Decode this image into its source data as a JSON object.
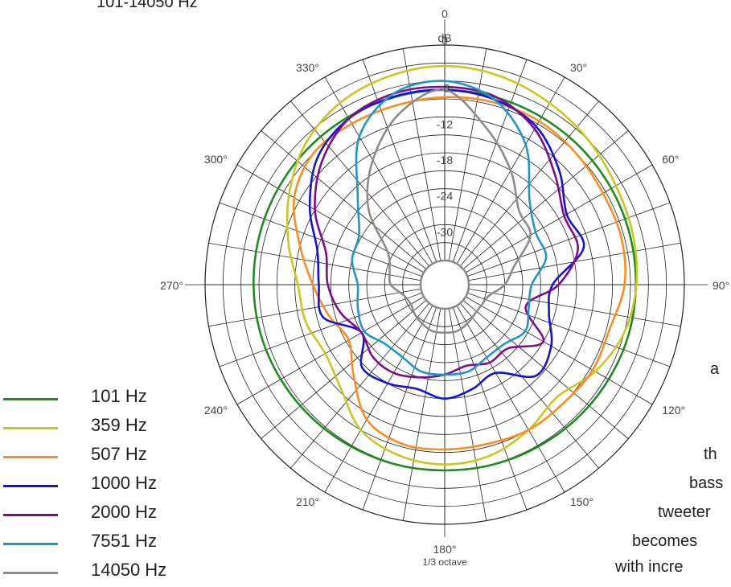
{
  "page": {
    "title": "101-14050 Hz",
    "side_fragments": [
      "a",
      "th",
      "bass",
      "tweeter",
      "becomes",
      "with incre"
    ]
  },
  "chart_data": {
    "type": "polar-line",
    "radial_unit": "dB",
    "radial_ticks": [
      "0",
      "-6",
      "-12",
      "-18",
      "-24",
      "-30"
    ],
    "radial_range": [
      -36,
      0
    ],
    "angle_labels": [
      {
        "angle": 0,
        "label": "0"
      },
      {
        "angle": 30,
        "label": "30°"
      },
      {
        "angle": 60,
        "label": "60°"
      },
      {
        "angle": 90,
        "label": "90°"
      },
      {
        "angle": 120,
        "label": "120°"
      },
      {
        "angle": 150,
        "label": "150°"
      },
      {
        "angle": 180,
        "label": "180°"
      },
      {
        "angle": 210,
        "label": "210°"
      },
      {
        "angle": 240,
        "label": "240°"
      },
      {
        "angle": 270,
        "label": "270°"
      },
      {
        "angle": 300,
        "label": "300°"
      },
      {
        "angle": 330,
        "label": "330°"
      }
    ],
    "resolution_label": "1/3 octave",
    "grid": true,
    "legend_position": "bottom-left",
    "angles": [
      0,
      15,
      30,
      45,
      60,
      75,
      90,
      105,
      120,
      135,
      150,
      165,
      180,
      195,
      210,
      225,
      240,
      255,
      270,
      285,
      300,
      315,
      330,
      345
    ],
    "series": [
      {
        "name": "101 Hz",
        "color": "#1e8c1e",
        "values": [
          -7.5,
          -7.6,
          -7.7,
          -7.8,
          -7.9,
          -8.0,
          -8.1,
          -8.2,
          -8.4,
          -8.6,
          -8.8,
          -8.9,
          -9.0,
          -8.9,
          -8.8,
          -8.6,
          -8.4,
          -8.2,
          -8.1,
          -8.0,
          -7.9,
          -7.8,
          -7.7,
          -7.6
        ]
      },
      {
        "name": "359 Hz",
        "color": "#c8c81e",
        "values": [
          -3.5,
          -4.0,
          -5.0,
          -6.0,
          -7.0,
          -7.5,
          -8.0,
          -9.0,
          -11.0,
          -13.5,
          -12.0,
          -10.5,
          -10.0,
          -10.5,
          -12.0,
          -15.5,
          -17.0,
          -16.0,
          -15.5,
          -13.0,
          -10.0,
          -7.0,
          -5.0,
          -4.0
        ]
      },
      {
        "name": "507 Hz",
        "color": "#ff8c1e",
        "values": [
          -8.7,
          -8.5,
          -8.5,
          -9.0,
          -9.5,
          -9.5,
          -10.0,
          -11.5,
          -11.5,
          -12.0,
          -12.0,
          -12.5,
          -12.5,
          -12.5,
          -14.0,
          -18.5,
          -21.5,
          -20.0,
          -18.0,
          -15.0,
          -11.0,
          -9.0,
          -9.0,
          -9.0
        ]
      },
      {
        "name": "1000 Hz",
        "color": "#1414d2",
        "values": [
          -7.5,
          -8.0,
          -9.5,
          -13.0,
          -16.5,
          -16.0,
          -22.0,
          -22.0,
          -19.5,
          -18.5,
          -23.0,
          -22.0,
          -21.0,
          -22.0,
          -21.0,
          -20.5,
          -24.0,
          -19.0,
          -19.0,
          -18.0,
          -14.0,
          -10.0,
          -8.0,
          -7.5
        ]
      },
      {
        "name": "2000 Hz",
        "color": "#820a8c",
        "values": [
          -7.0,
          -7.5,
          -10.0,
          -14.0,
          -17.0,
          -17.0,
          -21.0,
          -26.0,
          -21.0,
          -25.0,
          -25.0,
          -26.0,
          -25.0,
          -24.0,
          -23.0,
          -23.0,
          -24.0,
          -22.0,
          -20.5,
          -19.5,
          -15.0,
          -11.0,
          -8.0,
          -7.0
        ]
      },
      {
        "name": "7551 Hz",
        "color": "#1e96c8",
        "values": [
          -6.0,
          -8.0,
          -13.0,
          -20.0,
          -22.5,
          -22.5,
          -25.5,
          -25.5,
          -24.5,
          -26.0,
          -26.0,
          -25.0,
          -25.0,
          -25.0,
          -26.0,
          -26.0,
          -24.5,
          -25.0,
          -25.5,
          -24.0,
          -23.5,
          -19.5,
          -11.5,
          -7.0
        ]
      },
      {
        "name": "14050 Hz",
        "color": "#8c8c8c",
        "values": [
          -7.5,
          -13.0,
          -18.0,
          -22.5,
          -23.5,
          -28.0,
          -30.0,
          -32.5,
          -33.0,
          -33.0,
          -32.5,
          -32.0,
          -32.0,
          -32.0,
          -32.5,
          -33.0,
          -33.5,
          -33.0,
          -31.0,
          -30.5,
          -29.0,
          -22.0,
          -16.0,
          -10.5
        ]
      }
    ]
  }
}
